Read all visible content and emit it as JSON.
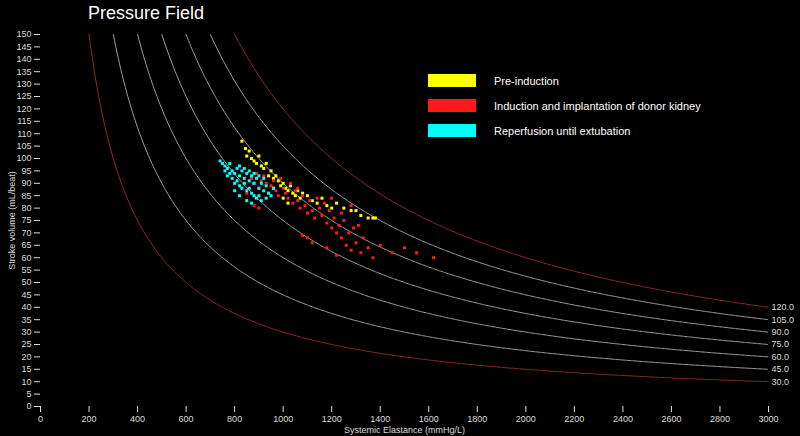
{
  "chart_data": {
    "type": "scatter",
    "title": "Pressure Field",
    "xlabel": "Systemic Elastance (mmHg/L)",
    "ylabel": "Stroke volume (mL/beat)",
    "xlim": [
      0,
      3000
    ],
    "xticks": [
      0,
      200,
      400,
      600,
      800,
      1000,
      1200,
      1400,
      1600,
      1800,
      2000,
      2200,
      2400,
      2600,
      2800,
      3000
    ],
    "ylim": [
      0,
      150
    ],
    "yticks": [
      0,
      5,
      10,
      15,
      20,
      25,
      30,
      35,
      40,
      45,
      50,
      55,
      60,
      65,
      70,
      75,
      80,
      85,
      90,
      95,
      100,
      105,
      110,
      115,
      120,
      125,
      130,
      135,
      140,
      145,
      150
    ],
    "grid": false,
    "legend": "top-right",
    "marker": "square",
    "isobars": [
      {
        "value": 30,
        "label": "30.0",
        "color": "#8b2c2c"
      },
      {
        "value": 45,
        "label": "45.0",
        "color": "#a0a0a0"
      },
      {
        "value": 60,
        "label": "60.0",
        "color": "#a0a0a0"
      },
      {
        "value": 75,
        "label": "75.0",
        "color": "#a0a0a0"
      },
      {
        "value": 90,
        "label": "90.0",
        "color": "#a0a0a0"
      },
      {
        "value": 105,
        "label": "105.0",
        "color": "#a0a0a0"
      },
      {
        "value": 120,
        "label": "120.0",
        "color": "#8b2c2c"
      }
    ],
    "series": [
      {
        "name": "Pre-induction",
        "color": "#ffff00",
        "x": [
          830,
          845,
          850,
          860,
          870,
          880,
          890,
          900,
          910,
          920,
          930,
          940,
          950,
          960,
          970,
          980,
          990,
          1000,
          1010,
          1020,
          1030,
          1040,
          1050,
          1060,
          1070,
          1080,
          1100,
          1120,
          1140,
          1160,
          1180,
          1200,
          1220,
          1250,
          1280,
          1300,
          1320,
          1350,
          1370,
          1380,
          960,
          1000,
          1020
        ],
        "values": [
          107,
          104,
          101,
          103,
          100,
          99,
          98,
          101,
          97,
          96,
          98,
          93,
          95,
          92,
          93,
          91,
          89,
          90,
          88,
          87,
          89,
          86,
          85,
          87,
          84,
          86,
          85,
          83,
          82,
          84,
          81,
          80,
          82,
          80,
          79,
          79,
          77,
          76,
          76,
          76,
          88,
          84,
          82
        ]
      },
      {
        "name": "Induction and implantation of donor kidney",
        "color": "#ff1a1a",
        "x": [
          870,
          880,
          890,
          900,
          910,
          920,
          930,
          940,
          950,
          960,
          970,
          980,
          990,
          1000,
          1010,
          1020,
          1030,
          1040,
          1050,
          1060,
          1070,
          1080,
          1090,
          1100,
          1110,
          1120,
          1130,
          1140,
          1150,
          1160,
          1170,
          1180,
          1190,
          1200,
          1210,
          1220,
          1230,
          1240,
          1250,
          1260,
          1270,
          1280,
          1290,
          1300,
          1310,
          1320,
          1330,
          1350,
          1370,
          1400,
          1450,
          1500,
          1550,
          1620,
          1100,
          1120,
          1080,
          1060,
          880,
          900,
          850,
          1200,
          1240,
          1180,
          1220,
          1280
        ],
        "values": [
          92,
          90,
          94,
          88,
          91,
          93,
          90,
          86,
          89,
          91,
          87,
          85,
          92,
          88,
          86,
          84,
          90,
          82,
          87,
          83,
          80,
          85,
          81,
          78,
          83,
          79,
          76,
          84,
          80,
          77,
          82,
          74,
          79,
          72,
          76,
          70,
          73,
          68,
          75,
          65,
          70,
          63,
          72,
          66,
          73,
          62,
          68,
          64,
          60,
          65,
          62,
          64,
          62,
          60,
          68,
          66,
          69,
          88,
          81,
          80,
          86,
          84,
          78,
          64,
          61,
          81
        ]
      },
      {
        "name": "Reperfusion until extubation",
        "color": "#00ffff",
        "x": [
          740,
          750,
          760,
          770,
          780,
          790,
          800,
          810,
          820,
          830,
          840,
          850,
          860,
          870,
          880,
          890,
          900,
          910,
          920,
          930,
          940,
          950,
          790,
          800,
          810,
          820,
          830,
          840,
          850,
          860,
          870,
          880,
          890,
          900,
          910,
          780,
          770,
          760,
          820,
          840,
          860,
          880,
          900,
          920,
          930,
          850,
          870,
          800,
          820,
          960
        ],
        "values": [
          99,
          98,
          97,
          96,
          98,
          95,
          94,
          96,
          93,
          95,
          92,
          94,
          91,
          93,
          90,
          92,
          88,
          90,
          87,
          89,
          86,
          85,
          92,
          90,
          91,
          89,
          88,
          90,
          87,
          88,
          86,
          85,
          84,
          85,
          83,
          94,
          93,
          95,
          97,
          96,
          95,
          94,
          93,
          92,
          84,
          83,
          82,
          87,
          85,
          88
        ]
      }
    ]
  }
}
